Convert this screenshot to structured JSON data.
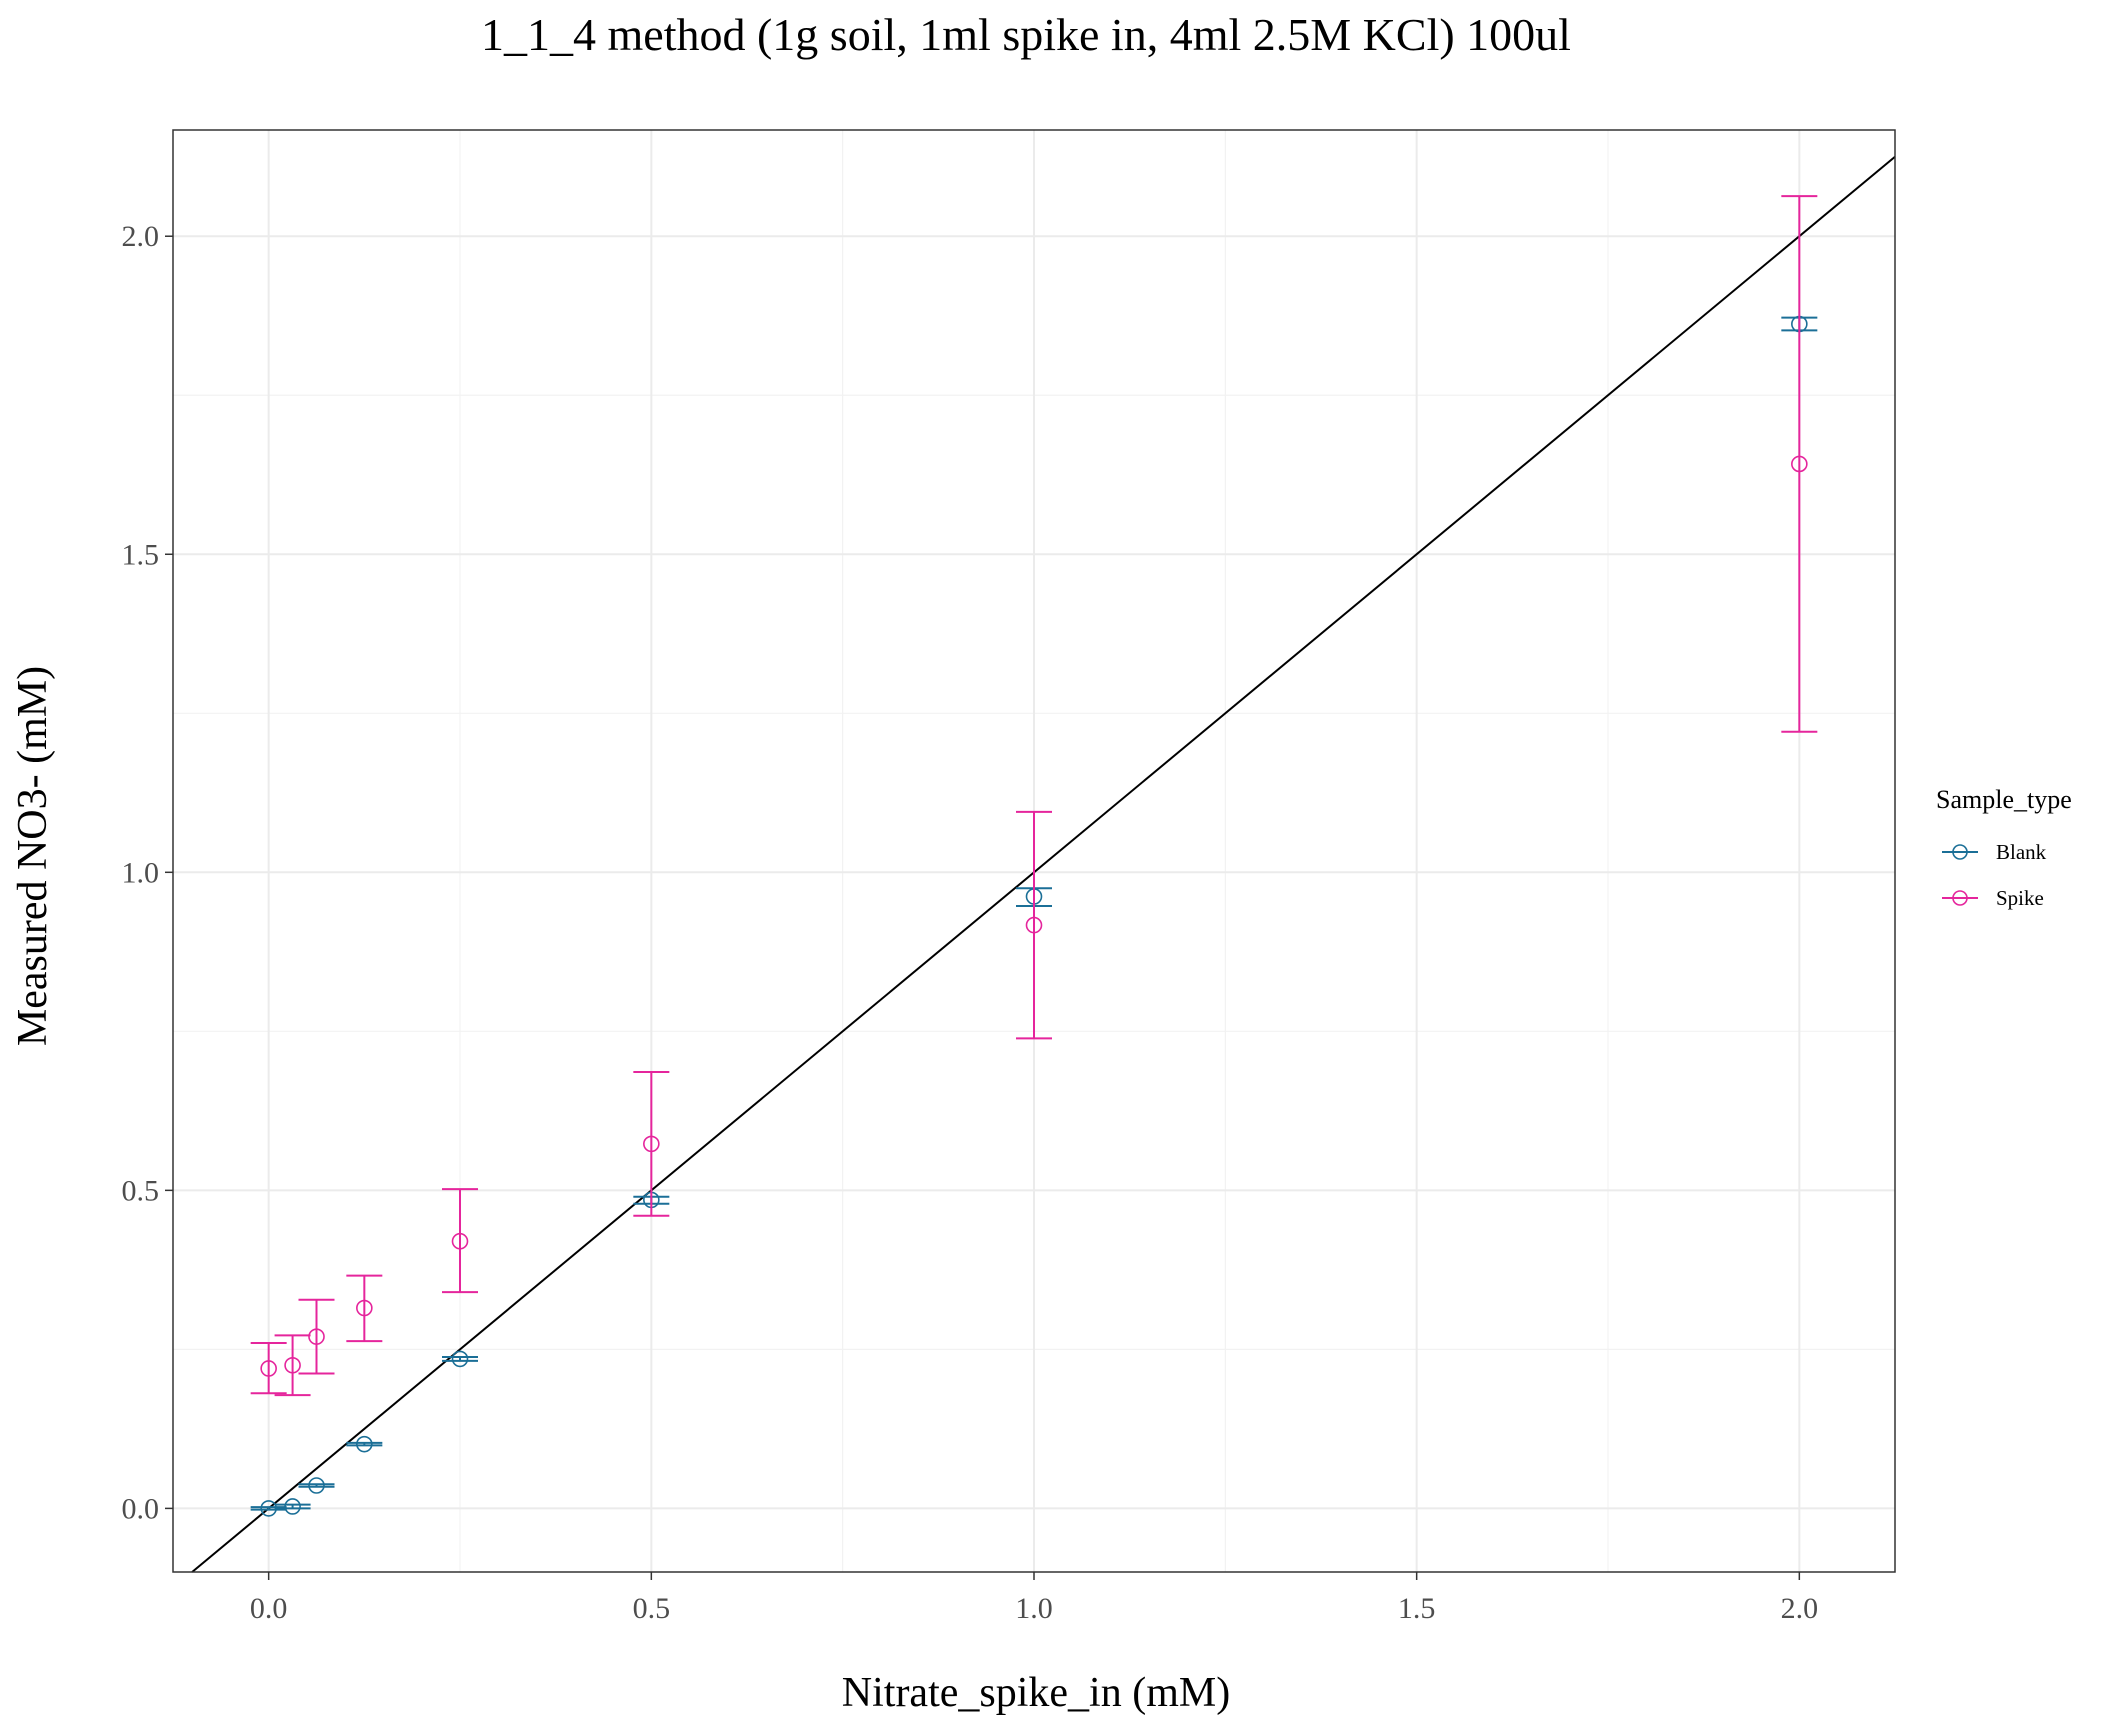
{
  "chart_data": {
    "type": "scatter",
    "title": "1_1_4 method (1g soil, 1ml spike in, 4ml 2.5M KCl) 100ul",
    "xlabel": "Nitrate_spike_in (mM)",
    "ylabel": "Measured NO3- (mM)",
    "xlim": [
      -0.125,
      2.125
    ],
    "ylim": [
      -0.1,
      2.167
    ],
    "x_ticks": [
      0.0,
      0.5,
      1.0,
      1.5,
      2.0
    ],
    "x_tick_labels": [
      "0.0",
      "0.5",
      "1.0",
      "1.5",
      "2.0"
    ],
    "y_ticks": [
      0.0,
      0.5,
      1.0,
      1.5,
      2.0
    ],
    "y_tick_labels": [
      "0.0",
      "0.5",
      "1.0",
      "1.5",
      "2.0"
    ],
    "grid": true,
    "legend": {
      "title": "Sample_type",
      "position": "right"
    },
    "reference_line": {
      "slope": 1,
      "intercept": 0,
      "color": "#000000"
    },
    "series": [
      {
        "name": "Blank",
        "color": "#1B6F97",
        "points": [
          {
            "x": 0.0,
            "y": 0.0,
            "ymin": -0.002,
            "ymax": 0.002
          },
          {
            "x": 0.03125,
            "y": 0.003,
            "ymin": 0.0,
            "ymax": 0.006
          },
          {
            "x": 0.0625,
            "y": 0.036,
            "ymin": 0.034,
            "ymax": 0.038
          },
          {
            "x": 0.125,
            "y": 0.101,
            "ymin": 0.099,
            "ymax": 0.103
          },
          {
            "x": 0.25,
            "y": 0.235,
            "ymin": 0.232,
            "ymax": 0.238
          },
          {
            "x": 0.5,
            "y": 0.485,
            "ymin": 0.479,
            "ymax": 0.49
          },
          {
            "x": 1.0,
            "y": 0.962,
            "ymin": 0.947,
            "ymax": 0.975
          },
          {
            "x": 2.0,
            "y": 1.862,
            "ymin": 1.852,
            "ymax": 1.872
          }
        ]
      },
      {
        "name": "Spike",
        "color": "#E5259C",
        "points": [
          {
            "x": 0.0,
            "y": 0.22,
            "ymin": 0.181,
            "ymax": 0.26
          },
          {
            "x": 0.03125,
            "y": 0.225,
            "ymin": 0.178,
            "ymax": 0.272
          },
          {
            "x": 0.0625,
            "y": 0.27,
            "ymin": 0.212,
            "ymax": 0.328
          },
          {
            "x": 0.125,
            "y": 0.315,
            "ymin": 0.263,
            "ymax": 0.366
          },
          {
            "x": 0.25,
            "y": 0.42,
            "ymin": 0.34,
            "ymax": 0.502
          },
          {
            "x": 0.5,
            "y": 0.573,
            "ymin": 0.46,
            "ymax": 0.686
          },
          {
            "x": 1.0,
            "y": 0.917,
            "ymin": 0.739,
            "ymax": 1.095
          },
          {
            "x": 2.0,
            "y": 1.642,
            "ymin": 1.221,
            "ymax": 2.063
          }
        ]
      }
    ]
  }
}
